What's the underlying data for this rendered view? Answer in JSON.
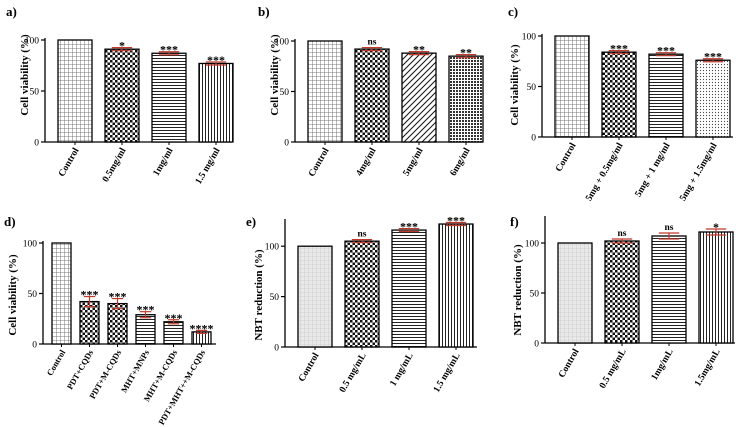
{
  "colors": {
    "error_bar": "#c0392b",
    "axis": "#000000",
    "bar_fill": "#ffffff"
  },
  "chart_data": [
    {
      "panel": "a)",
      "type": "bar",
      "ylabel": "Cell viability (%)",
      "ylim": [
        0,
        100
      ],
      "yticks": [
        0,
        50,
        100
      ],
      "categories": [
        "Control",
        "0.5mg/ml",
        "1mg/ml",
        "1.5 mg/ml"
      ],
      "values": [
        100,
        91,
        87,
        77
      ],
      "errors": [
        0,
        1.5,
        1.5,
        1.5
      ],
      "significance": [
        "",
        "*",
        "***",
        "***"
      ],
      "patterns": [
        "grid",
        "dots",
        "hlines",
        "vlines"
      ]
    },
    {
      "panel": "b)",
      "type": "bar",
      "ylabel": "Cell viability (%)",
      "ylim": [
        0,
        100
      ],
      "yticks": [
        0,
        50,
        100
      ],
      "categories": [
        "Control",
        "4mg/ml",
        "5mg/ml",
        "6mg/ml"
      ],
      "values": [
        100,
        92,
        88,
        85
      ],
      "errors": [
        0,
        1.5,
        1.5,
        1.5
      ],
      "significance": [
        "",
        "ns",
        "**",
        "**"
      ],
      "patterns": [
        "grid",
        "dots",
        "diag",
        "dense"
      ]
    },
    {
      "panel": "c)",
      "type": "bar",
      "ylabel": "Cell viability (%)",
      "ylim": [
        0,
        100
      ],
      "yticks": [
        0,
        50,
        100
      ],
      "categories": [
        "Control",
        "5mg + 0.5mg/ml",
        "5mg + 1 mg/ml",
        "5mg + 1.5mg/ml"
      ],
      "values": [
        100,
        84,
        82,
        76
      ],
      "errors": [
        0,
        1.5,
        1.5,
        1.5
      ],
      "significance": [
        "",
        "***",
        "***",
        "***"
      ],
      "patterns": [
        "grid",
        "dots",
        "hlines",
        "fine"
      ]
    },
    {
      "panel": "d)",
      "type": "bar",
      "ylabel": "Cell viability (%)",
      "ylim": [
        0,
        100
      ],
      "yticks": [
        0,
        50,
        100
      ],
      "categories": [
        "Control",
        "PDT+CQDs",
        "PDT+M-CQDs",
        "MHT+MNPs",
        "MHT+M-CQDs",
        "PDT+MHT++M-CQDs"
      ],
      "values": [
        100,
        42,
        40,
        29,
        22,
        12
      ],
      "errors": [
        0,
        5,
        5,
        3,
        2,
        1.5
      ],
      "significance": [
        "",
        "***",
        "***",
        "***",
        "***",
        "****"
      ],
      "patterns": [
        "grid",
        "dots",
        "dots",
        "hlines",
        "hlines",
        "vlines"
      ]
    },
    {
      "panel": "e)",
      "type": "bar",
      "ylabel": "NBT reduction (%)",
      "ylim": [
        0,
        125
      ],
      "yticks": [
        0,
        50,
        100
      ],
      "categories": [
        "Control",
        "0.5 mg/mL",
        "1 mg/mL",
        "1.5 mg/mL"
      ],
      "values": [
        100,
        105,
        116,
        122
      ],
      "errors": [
        0,
        1.5,
        1.5,
        1.5
      ],
      "significance": [
        "",
        "ns",
        "***",
        "***"
      ],
      "patterns": [
        "shade",
        "dots",
        "hlines",
        "vlines"
      ]
    },
    {
      "panel": "f)",
      "type": "bar",
      "ylabel": "NBT reduction (%)",
      "ylim": [
        0,
        125
      ],
      "yticks": [
        0,
        50,
        100
      ],
      "categories": [
        "Control",
        "0.5 mg/mL",
        "1mg/mL",
        "1.5mg/mL"
      ],
      "values": [
        100,
        102,
        107,
        111
      ],
      "errors": [
        0,
        2,
        3,
        3
      ],
      "significance": [
        "",
        "ns",
        "ns",
        "*"
      ],
      "patterns": [
        "shade",
        "dots",
        "hlines",
        "vlines"
      ]
    }
  ]
}
